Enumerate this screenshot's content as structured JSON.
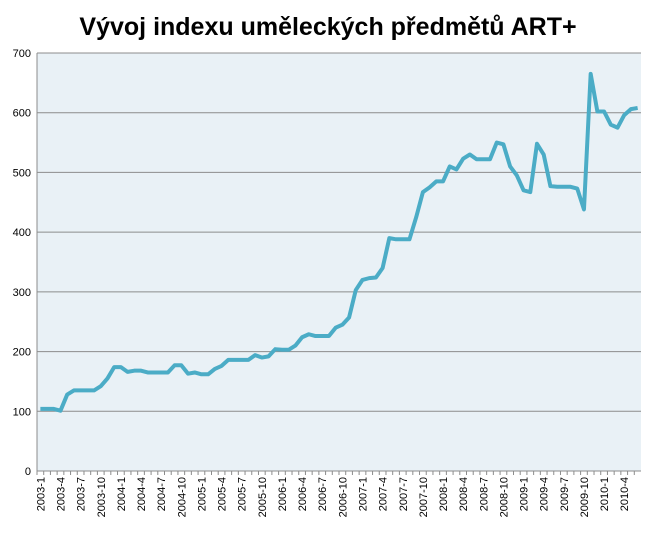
{
  "chart_data": {
    "type": "line",
    "title": "Vývoj indexu uměleckých předmětů ART+",
    "categories": [
      "2003-1",
      null,
      null,
      "2003-4",
      null,
      null,
      "2003-7",
      null,
      null,
      "2003-10",
      null,
      null,
      "2004-1",
      null,
      null,
      "2004-4",
      null,
      null,
      "2004-7",
      null,
      null,
      "2004-10",
      null,
      null,
      "2005-1",
      null,
      null,
      "2005-4",
      null,
      null,
      "2005-7",
      null,
      null,
      "2005-10",
      null,
      null,
      "2006-1",
      null,
      null,
      "2006-4",
      null,
      null,
      "2006-7",
      null,
      null,
      "2006-10",
      null,
      null,
      "2007-1",
      null,
      null,
      "2007-4",
      null,
      null,
      "2007-7",
      null,
      null,
      "2007-10",
      null,
      null,
      "2008-1",
      null,
      null,
      "2008-4",
      null,
      null,
      "2008-7",
      null,
      null,
      "2008-10",
      null,
      null,
      "2009-1",
      null,
      null,
      "2009-4",
      null,
      null,
      "2009-7",
      null,
      null,
      "2009-10",
      null,
      null,
      "2010-1",
      null,
      null,
      "2010-4",
      null,
      null
    ],
    "values": [
      104,
      104,
      104,
      101,
      128,
      135,
      135,
      135,
      135,
      142,
      155,
      174,
      174,
      166,
      168,
      168,
      165,
      165,
      165,
      165,
      177,
      177,
      163,
      165,
      162,
      162,
      171,
      176,
      186,
      186,
      186,
      186,
      194,
      190,
      192,
      204,
      203,
      203,
      210,
      224,
      229,
      226,
      226,
      226,
      240,
      245,
      257,
      303,
      320,
      323,
      324,
      340,
      390,
      388,
      388,
      388,
      425,
      467,
      475,
      485,
      485,
      510,
      505,
      523,
      530,
      522,
      522,
      522,
      550,
      547,
      510,
      495,
      470,
      467,
      548,
      530,
      477,
      476,
      476,
      476,
      473,
      438,
      665,
      602,
      602,
      580,
      575,
      596,
      606,
      608
    ],
    "color": "#4bacc6",
    "ylim": [
      0,
      700
    ],
    "yticks": [
      0,
      100,
      200,
      300,
      400,
      500,
      600,
      700
    ],
    "grid": true
  }
}
